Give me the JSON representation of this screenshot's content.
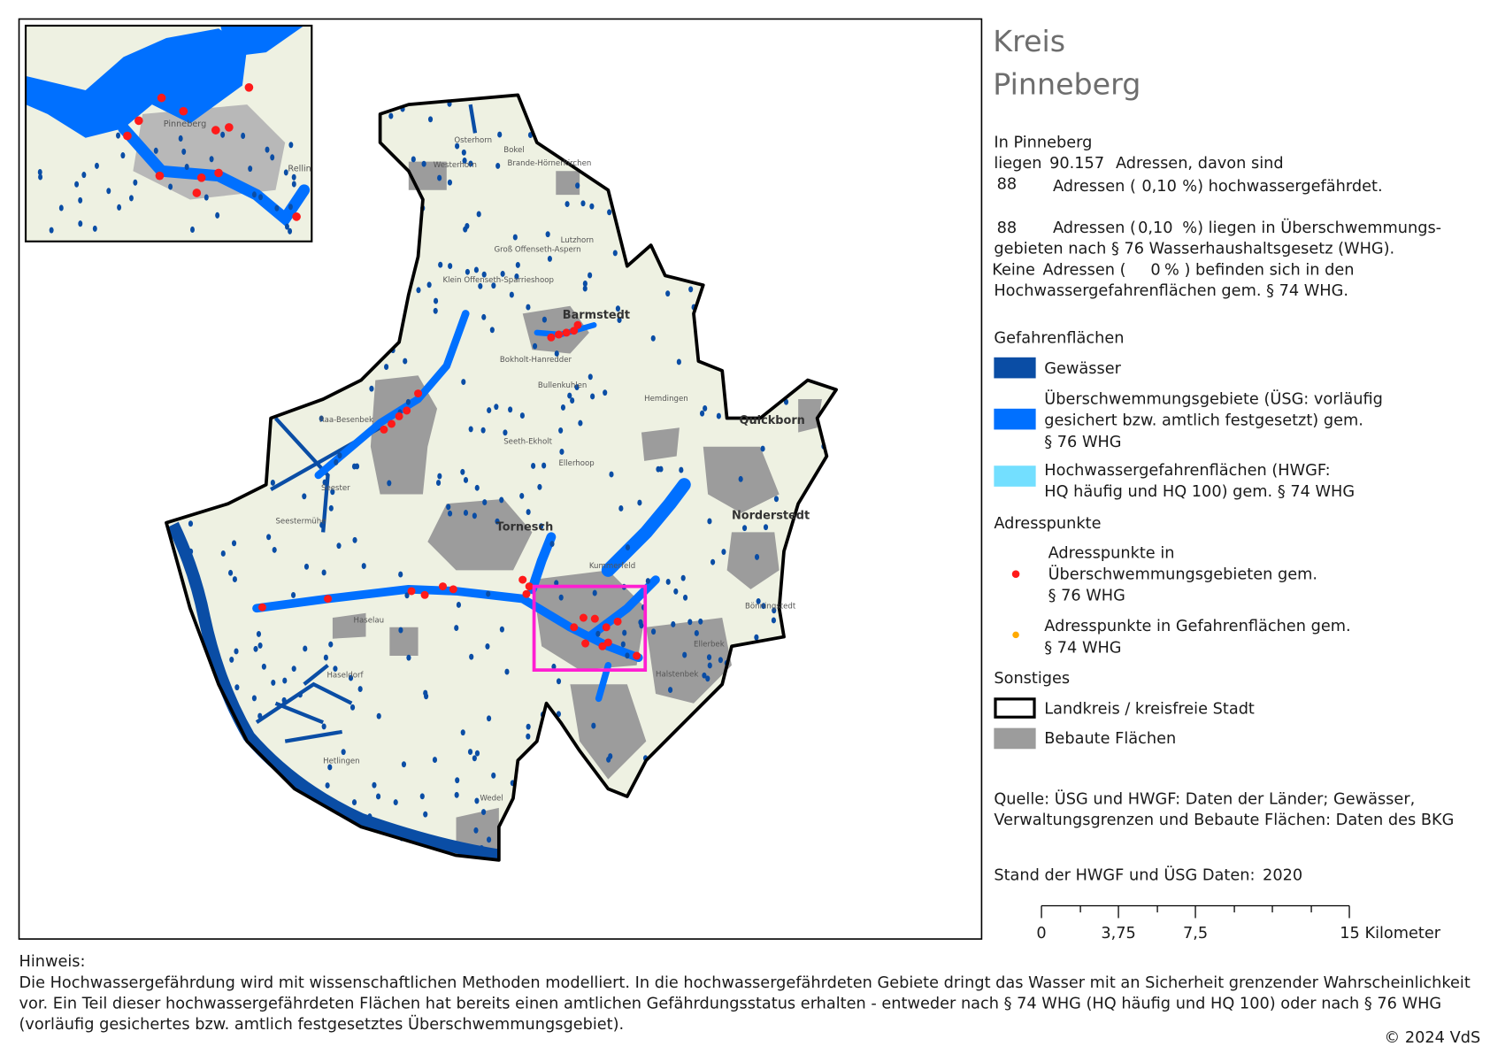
{
  "header": {
    "title_line1": "Kreis",
    "title_line2": "Pinneberg"
  },
  "stats": {
    "line1": "In Pinneberg",
    "line2_prefix": "liegen",
    "addresses_total": "90.157",
    "line2_suffix": "Adressen, davon sind",
    "endangered_count": "88",
    "line3_prefix": "Adressen (",
    "endangered_percent": "0,10",
    "line3_suffix": "%) hochwassergefährdet.",
    "usg_count": "88",
    "line4_prefix": "Adressen (",
    "usg_percent": "0,10",
    "line4_suffix": "%) liegen in Überschwemmungs-",
    "line5": "gebieten nach § 76 Wasserhaushaltsgesetz (WHG).",
    "line6_prefix": "Keine",
    "line6_middle": "Adressen (",
    "hwgf_percent": "0",
    "line6_suffix": "% ) befinden sich in den",
    "line7": "Hochwassergefahrenflächen gem. § 74 WHG."
  },
  "legend": {
    "hazard_heading": "Gefahrenflächen",
    "hazard_items": [
      {
        "lines": [
          "Gewässer"
        ]
      },
      {
        "lines": [
          "Überschwemmungsgebiete (ÜSG: vorläufig",
          "gesichert bzw. amtlich festgesetzt) gem.",
          "§ 76 WHG"
        ]
      },
      {
        "lines": [
          "Hochwassergefahrenflächen (HWGF:",
          "HQ häufig und HQ 100) gem. § 74 WHG"
        ]
      }
    ],
    "address_heading": "Adresspunkte",
    "address_items": [
      {
        "lines": [
          "Adresspunkte in",
          "Überschwemmungsgebieten gem.",
          "§ 76 WHG"
        ]
      },
      {
        "lines": [
          "Adresspunkte in Gefahrenflächen gem.",
          "§ 74 WHG"
        ]
      }
    ],
    "other_heading": "Sonstiges",
    "other_items": [
      {
        "lines": [
          "Landkreis / kreisfreie Stadt"
        ]
      },
      {
        "lines": [
          "Bebaute Flächen"
        ]
      }
    ]
  },
  "source": {
    "lines": [
      "Quelle: ÜSG und HWGF: Daten der Länder; Gewässer,",
      "Verwaltungsgrenzen und Bebaute Flächen: Daten des BKG"
    ]
  },
  "stand": {
    "label": "Stand der HWGF und ÜSG Daten:",
    "year": "2020"
  },
  "scale_bar": {
    "labels": [
      "0",
      "3,75",
      "7,5",
      "15 Kilometer"
    ]
  },
  "note": {
    "title": "Hinweis:",
    "lines": [
      "Die Hochwassergefährdung wird mit wissenschaftlichen Methoden modelliert. In die hochwassergefährdeten Gebiete dringt das Wasser mit an Sicherheit grenzender Wahrscheinlichkeit",
      "vor. Ein Teil dieser hochwassergefährdeten Flächen hat bereits einen amtlichen Gefährdungsstatus erhalten - entweder nach § 74 WHG (HQ häufig und HQ 100) oder nach § 76 WHG",
      "(vorläufig gesichertes bzw. amtlich festgesetztes Überschwemmungsgebiet)."
    ]
  },
  "copyright": "© 2024 VdS",
  "map": {
    "inset_labels": [
      "Pinneberg",
      "Rellin"
    ],
    "place_labels": [
      "Osterhorn",
      "Bokel",
      "Westerhorn",
      "Brande-Hörnerkirchen",
      "Groß Offenseth-Aspern",
      "Lutzhorn",
      "Klein Offenseth-Sparrieshoop",
      "Barmstedt",
      "Bokholt-Hanredder",
      "Bullenkuhlen",
      "Hemdingen",
      "Raa-Besenbek",
      "Seeth-Ekholt",
      "Ellerhoop",
      "Quickborn",
      "Seester",
      "Seestermühe",
      "Tornesch",
      "Norderstedt",
      "Kummerfeld",
      "Haselau",
      "Haseldorf",
      "Bönningstedt",
      "Ellerbek",
      "Halstenbek",
      "Hetlingen",
      "Wedel"
    ]
  }
}
